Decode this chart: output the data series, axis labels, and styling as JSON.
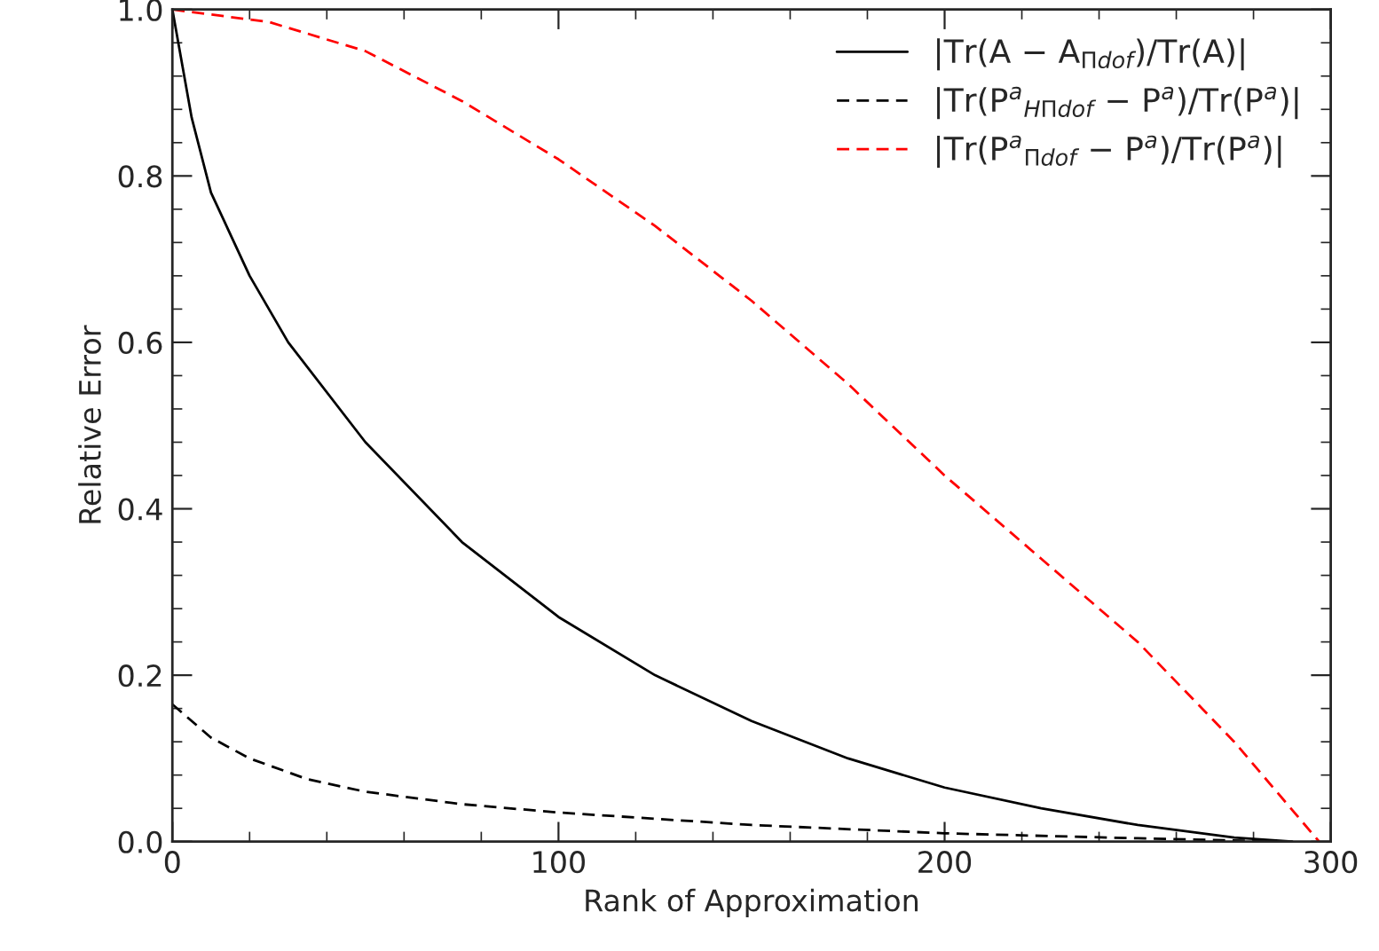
{
  "chart_data": {
    "type": "line",
    "xlabel": "Rank of Approximation",
    "ylabel": "Relative Error",
    "xlim": [
      0,
      300
    ],
    "ylim": [
      0,
      1.0
    ],
    "xticks": [
      0,
      100,
      200,
      300
    ],
    "yticks": [
      {
        "value": 0,
        "label": "0.0"
      },
      {
        "value": 0.2,
        "label": "0.2"
      },
      {
        "value": 0.4,
        "label": "0.4"
      },
      {
        "value": 0.6,
        "label": "0.6"
      },
      {
        "value": 0.8,
        "label": "0.8"
      },
      {
        "value": 1.0,
        "label": "1.0"
      }
    ],
    "legend": "top right",
    "grid": false,
    "series": [
      {
        "name": "|Tr(A − A$_{Πdof}$)/Tr(A)|",
        "color": "#000000",
        "line_style": "solid",
        "x": [
          0,
          5,
          10,
          20,
          30,
          50,
          75,
          100,
          125,
          150,
          175,
          200,
          225,
          250,
          275,
          290
        ],
        "values": [
          1.0,
          0.87,
          0.78,
          0.68,
          0.6,
          0.48,
          0.36,
          0.27,
          0.2,
          0.145,
          0.1,
          0.065,
          0.04,
          0.02,
          0.005,
          0.0
        ]
      },
      {
        "name": "|Tr(P$^{a}$$_{HΠdof}$ − P$^{a}$)/Tr(P$^{a}$)|",
        "color": "#000000",
        "line_style": "dashed",
        "x": [
          0,
          10,
          20,
          35,
          50,
          75,
          100,
          150,
          200,
          250,
          290
        ],
        "values": [
          0.165,
          0.125,
          0.1,
          0.075,
          0.06,
          0.045,
          0.035,
          0.02,
          0.01,
          0.004,
          0.0
        ]
      },
      {
        "name": "|Tr(P$^{a}$$_{Πdof}$ − P$^{a}$)/Tr(P$^{a}$)|",
        "color": "#ff0000",
        "line_style": "dashed",
        "x": [
          0,
          25,
          50,
          75,
          100,
          125,
          150,
          175,
          200,
          225,
          250,
          275,
          297
        ],
        "values": [
          1.0,
          0.985,
          0.95,
          0.89,
          0.82,
          0.74,
          0.65,
          0.55,
          0.44,
          0.34,
          0.24,
          0.12,
          0.0
        ]
      }
    ]
  }
}
